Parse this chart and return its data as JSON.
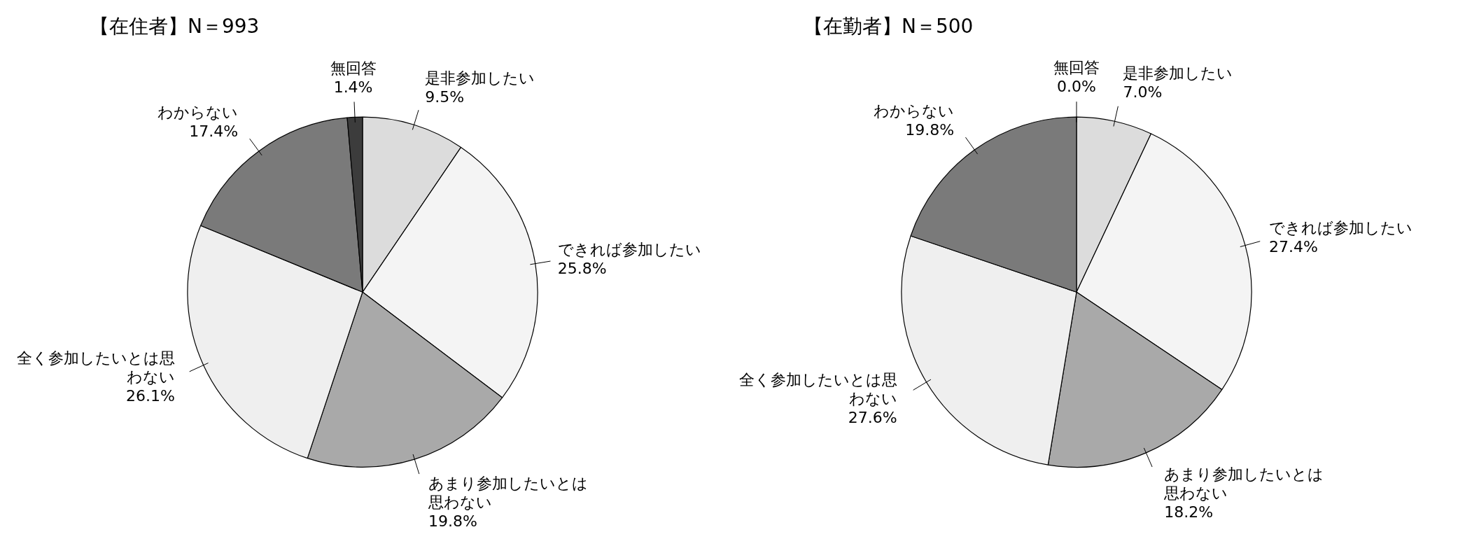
{
  "chart_data": [
    {
      "type": "pie",
      "title": "【在住者】N＝993",
      "categories": [
        "是非参加したい",
        "できれば参加したい",
        "あまり参加したいとは思わない",
        "全く参加したいとは思わない",
        "わからない",
        "無回答"
      ],
      "values": [
        9.5,
        25.8,
        19.8,
        26.1,
        17.4,
        1.4
      ],
      "value_labels": [
        "9.5%",
        "25.8%",
        "19.8%",
        "26.1%",
        "17.4%",
        "1.4%"
      ],
      "colors": [
        "#dcdcdc",
        "#f4f4f4",
        "#a9a9a9",
        "#efefef",
        "#7a7a7a",
        "#3c3c3c"
      ],
      "legend": false
    },
    {
      "type": "pie",
      "title": "【在勤者】N＝500",
      "categories": [
        "是非参加したい",
        "できれば参加したい",
        "あまり参加したいとは思わない",
        "全く参加したいとは思わない",
        "わからない",
        "無回答"
      ],
      "values": [
        7.0,
        27.4,
        18.2,
        27.6,
        19.8,
        0.0
      ],
      "value_labels": [
        "7.0%",
        "27.4%",
        "18.2%",
        "27.6%",
        "19.8%",
        "0.0%"
      ],
      "colors": [
        "#dcdcdc",
        "#f4f4f4",
        "#a9a9a9",
        "#efefef",
        "#7a7a7a",
        "#3c3c3c"
      ],
      "legend": false
    }
  ]
}
